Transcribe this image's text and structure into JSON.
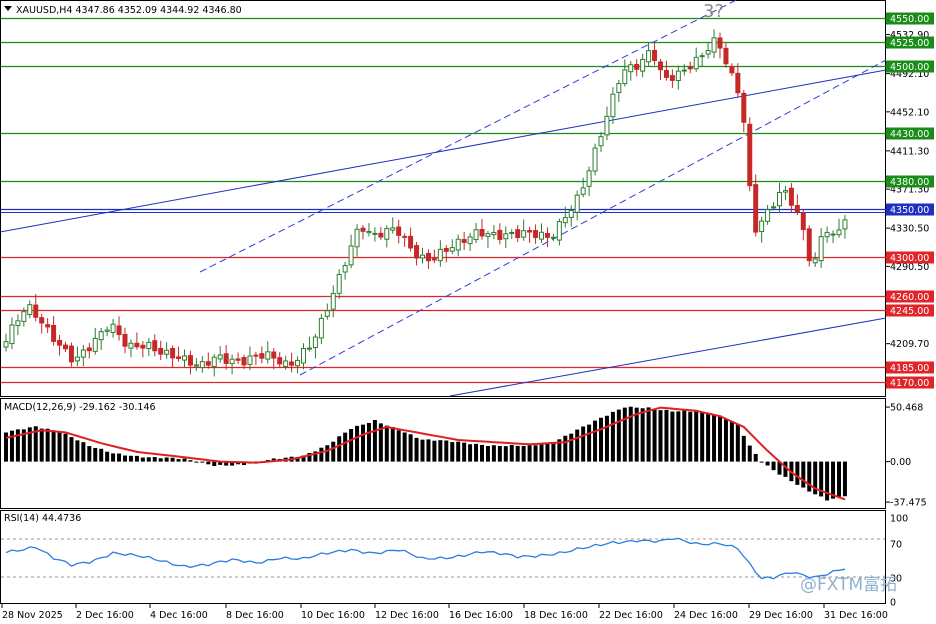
{
  "header": {
    "symbol_line": "XAUUSD,H4  4347.86 4352.09 4344.92 4346.80"
  },
  "colors": {
    "up": "#2e7d32",
    "up_fill": "#ffffff",
    "down": "#c62828",
    "green_level": "#1a8c1a",
    "red_level": "#e0252a",
    "blue_level": "#1f2fbf",
    "macd_signal": "#e02020",
    "rsi": "#2a7de0"
  },
  "price_axis": {
    "min": 4155,
    "max": 4568,
    "ticks": [
      "4532.90",
      "4492.10",
      "4452.10",
      "4411.30",
      "4371.30",
      "4330.50",
      "4290.50",
      "4209.70"
    ]
  },
  "levels": [
    {
      "label": "4550.00",
      "value": 4550,
      "kind": "green"
    },
    {
      "label": "4525.00",
      "value": 4525,
      "kind": "green"
    },
    {
      "label": "4500.00",
      "value": 4500,
      "kind": "green"
    },
    {
      "label": "4430.00",
      "value": 4430,
      "kind": "green"
    },
    {
      "label": "4380.00",
      "value": 4380,
      "kind": "green"
    },
    {
      "label": "4350.00",
      "value": 4350,
      "kind": "blue"
    },
    {
      "label": "4300.00",
      "value": 4300,
      "kind": "red"
    },
    {
      "label": "4260.00",
      "value": 4260,
      "kind": "red"
    },
    {
      "label": "4245.00",
      "value": 4245,
      "kind": "red"
    },
    {
      "label": "4185.00",
      "value": 4185,
      "kind": "red"
    },
    {
      "label": "4170.00",
      "value": 4170,
      "kind": "red"
    }
  ],
  "wave_label": "3?",
  "x_axis": {
    "labels": [
      "28 Nov 2025",
      "2 Dec 16:00",
      "4 Dec 16:00",
      "8 Dec 16:00",
      "10 Dec 16:00",
      "12 Dec 16:00",
      "16 Dec 16:00",
      "18 Dec 16:00",
      "22 Dec 16:00",
      "24 Dec 16:00",
      "29 Dec 16:00",
      "31 Dec 16:00"
    ]
  },
  "macd": {
    "title": "MACD(12,26,9) -29.162 -30.146",
    "min": -42,
    "max": 57,
    "ticks": [
      "50.468",
      "0.00",
      "-37.475"
    ]
  },
  "rsi": {
    "title": "RSI(14) 44.4736",
    "ticks": [
      "100",
      "70",
      "30",
      "0"
    ]
  },
  "watermark": "@FXTM富拓",
  "chart_data": {
    "type": "candlestick",
    "title": "XAUUSD,H4",
    "ylim": [
      4155,
      4568
    ],
    "x_categories": [
      "28 Nov 2025",
      "2 Dec 16:00",
      "4 Dec 16:00",
      "8 Dec 16:00",
      "10 Dec 16:00",
      "12 Dec 16:00",
      "16 Dec 16:00",
      "18 Dec 16:00",
      "22 Dec 16:00",
      "24 Dec 16:00",
      "29 Dec 16:00",
      "31 Dec 16:00"
    ],
    "anchors": [
      [
        0,
        4205
      ],
      [
        4,
        4250
      ],
      [
        6,
        4240
      ],
      [
        9,
        4215
      ],
      [
        12,
        4190
      ],
      [
        15,
        4205
      ],
      [
        18,
        4230
      ],
      [
        21,
        4210
      ],
      [
        24,
        4212
      ],
      [
        27,
        4198
      ],
      [
        30,
        4190
      ],
      [
        33,
        4185
      ],
      [
        36,
        4200
      ],
      [
        40,
        4192
      ],
      [
        44,
        4195
      ],
      [
        48,
        4185
      ],
      [
        52,
        4215
      ],
      [
        56,
        4270
      ],
      [
        60,
        4330
      ],
      [
        62,
        4320
      ],
      [
        66,
        4335
      ],
      [
        70,
        4300
      ],
      [
        72,
        4295
      ],
      [
        76,
        4310
      ],
      [
        80,
        4330
      ],
      [
        84,
        4325
      ],
      [
        88,
        4322
      ],
      [
        92,
        4318
      ],
      [
        94,
        4340
      ],
      [
        97,
        4370
      ],
      [
        100,
        4420
      ],
      [
        104,
        4490
      ],
      [
        107,
        4500
      ],
      [
        109,
        4520
      ],
      [
        111,
        4490
      ],
      [
        114,
        4495
      ],
      [
        117,
        4505
      ],
      [
        120,
        4525
      ],
      [
        122,
        4495
      ],
      [
        124,
        4470
      ],
      [
        125,
        4420
      ],
      [
        126,
        4330
      ],
      [
        128,
        4345
      ],
      [
        131,
        4370
      ],
      [
        133,
        4350
      ],
      [
        135,
        4315
      ],
      [
        136,
        4280
      ],
      [
        138,
        4335
      ],
      [
        140,
        4320
      ],
      [
        141,
        4346
      ]
    ],
    "macd_anchors": [
      [
        0,
        27
      ],
      [
        5,
        33
      ],
      [
        9,
        28
      ],
      [
        14,
        14
      ],
      [
        18,
        8
      ],
      [
        24,
        4
      ],
      [
        30,
        2
      ],
      [
        35,
        -3
      ],
      [
        40,
        -3
      ],
      [
        45,
        2
      ],
      [
        50,
        6
      ],
      [
        54,
        15
      ],
      [
        58,
        30
      ],
      [
        62,
        38
      ],
      [
        66,
        30
      ],
      [
        70,
        20
      ],
      [
        76,
        18
      ],
      [
        82,
        15
      ],
      [
        88,
        14
      ],
      [
        92,
        18
      ],
      [
        96,
        30
      ],
      [
        100,
        40
      ],
      [
        104,
        50
      ],
      [
        108,
        50
      ],
      [
        112,
        47
      ],
      [
        116,
        46
      ],
      [
        120,
        42
      ],
      [
        123,
        35
      ],
      [
        125,
        15
      ],
      [
        127,
        0
      ],
      [
        130,
        -12
      ],
      [
        134,
        -25
      ],
      [
        138,
        -35
      ],
      [
        141,
        -31
      ]
    ],
    "signal_anchors": [
      [
        0,
        22
      ],
      [
        6,
        29
      ],
      [
        10,
        27
      ],
      [
        16,
        17
      ],
      [
        22,
        9
      ],
      [
        30,
        4
      ],
      [
        36,
        0
      ],
      [
        42,
        -1
      ],
      [
        48,
        2
      ],
      [
        54,
        10
      ],
      [
        60,
        25
      ],
      [
        64,
        32
      ],
      [
        70,
        26
      ],
      [
        76,
        20
      ],
      [
        82,
        18
      ],
      [
        88,
        16
      ],
      [
        94,
        18
      ],
      [
        100,
        30
      ],
      [
        106,
        44
      ],
      [
        110,
        50
      ],
      [
        116,
        47
      ],
      [
        120,
        42
      ],
      [
        124,
        32
      ],
      [
        128,
        10
      ],
      [
        132,
        -10
      ],
      [
        136,
        -25
      ],
      [
        141,
        -35
      ]
    ],
    "rsi_anchors": [
      [
        0,
        62
      ],
      [
        5,
        66
      ],
      [
        8,
        52
      ],
      [
        11,
        45
      ],
      [
        14,
        50
      ],
      [
        18,
        60
      ],
      [
        22,
        55
      ],
      [
        26,
        50
      ],
      [
        30,
        45
      ],
      [
        34,
        46
      ],
      [
        38,
        50
      ],
      [
        42,
        48
      ],
      [
        46,
        55
      ],
      [
        50,
        52
      ],
      [
        54,
        58
      ],
      [
        58,
        64
      ],
      [
        62,
        60
      ],
      [
        66,
        62
      ],
      [
        70,
        52
      ],
      [
        74,
        55
      ],
      [
        80,
        60
      ],
      [
        86,
        55
      ],
      [
        90,
        58
      ],
      [
        94,
        60
      ],
      [
        98,
        65
      ],
      [
        102,
        72
      ],
      [
        106,
        75
      ],
      [
        110,
        72
      ],
      [
        112,
        75
      ],
      [
        116,
        70
      ],
      [
        120,
        72
      ],
      [
        123,
        65
      ],
      [
        125,
        45
      ],
      [
        127,
        28
      ],
      [
        129,
        30
      ],
      [
        132,
        38
      ],
      [
        136,
        32
      ],
      [
        138,
        35
      ],
      [
        141,
        40
      ]
    ]
  }
}
